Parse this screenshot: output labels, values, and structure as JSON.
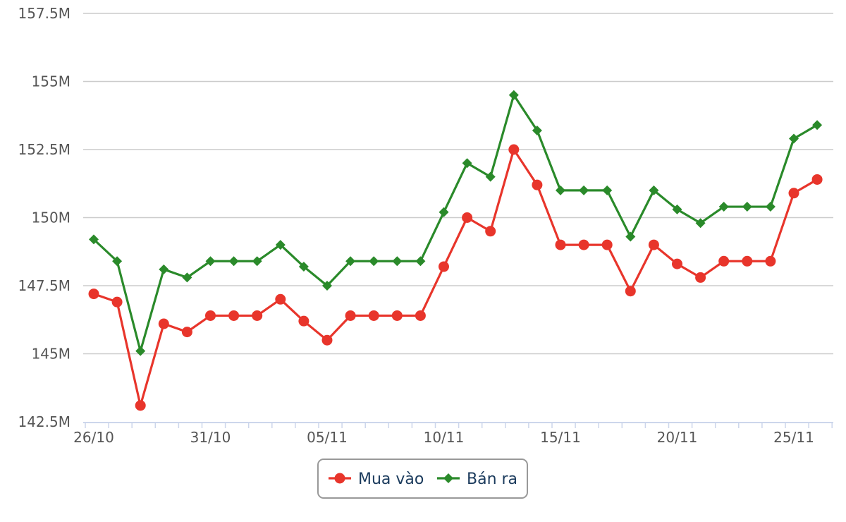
{
  "chart_data": {
    "type": "line",
    "title": "",
    "xlabel": "",
    "ylabel": "",
    "x": [
      "26/10",
      "27/10",
      "28/10",
      "29/10",
      "30/10",
      "31/10",
      "01/11",
      "02/11",
      "03/11",
      "04/11",
      "05/11",
      "06/11",
      "07/11",
      "08/11",
      "09/11",
      "10/11",
      "11/11",
      "12/11",
      "13/11",
      "14/11",
      "15/11",
      "16/11",
      "17/11",
      "18/11",
      "19/11",
      "20/11",
      "21/11",
      "22/11",
      "23/11",
      "24/11",
      "25/11",
      "26/11"
    ],
    "x_tick_labels": [
      "26/10",
      "31/10",
      "05/11",
      "10/11",
      "15/11",
      "20/11",
      "25/11"
    ],
    "y_tick_labels": [
      "142.5M",
      "145M",
      "147.5M",
      "150M",
      "152.5M",
      "155M",
      "157.5M"
    ],
    "y_ticks": [
      142.5,
      145,
      147.5,
      150,
      152.5,
      155,
      157.5
    ],
    "ylim": [
      142.5,
      157.5
    ],
    "grid": true,
    "legend_position": "bottom-center",
    "series": [
      {
        "name": "Mua vào",
        "color": "#e8352b",
        "marker": "circle",
        "values": [
          147.2,
          146.9,
          143.1,
          146.1,
          145.8,
          146.4,
          146.4,
          146.4,
          147.0,
          146.2,
          145.5,
          146.4,
          146.4,
          146.4,
          146.4,
          148.2,
          150.0,
          149.5,
          152.5,
          151.2,
          149.0,
          149.0,
          149.0,
          147.3,
          149.0,
          148.3,
          147.8,
          148.4,
          148.4,
          148.4,
          150.9,
          151.4
        ]
      },
      {
        "name": "Bán ra",
        "color": "#2a8a2a",
        "marker": "diamond",
        "values": [
          149.2,
          148.4,
          145.1,
          148.1,
          147.8,
          148.4,
          148.4,
          148.4,
          149.0,
          148.2,
          147.5,
          148.4,
          148.4,
          148.4,
          148.4,
          150.2,
          152.0,
          151.5,
          154.5,
          153.2,
          151.0,
          151.0,
          151.0,
          149.3,
          151.0,
          150.3,
          149.8,
          150.4,
          150.4,
          150.4,
          152.9,
          153.4
        ]
      }
    ]
  }
}
